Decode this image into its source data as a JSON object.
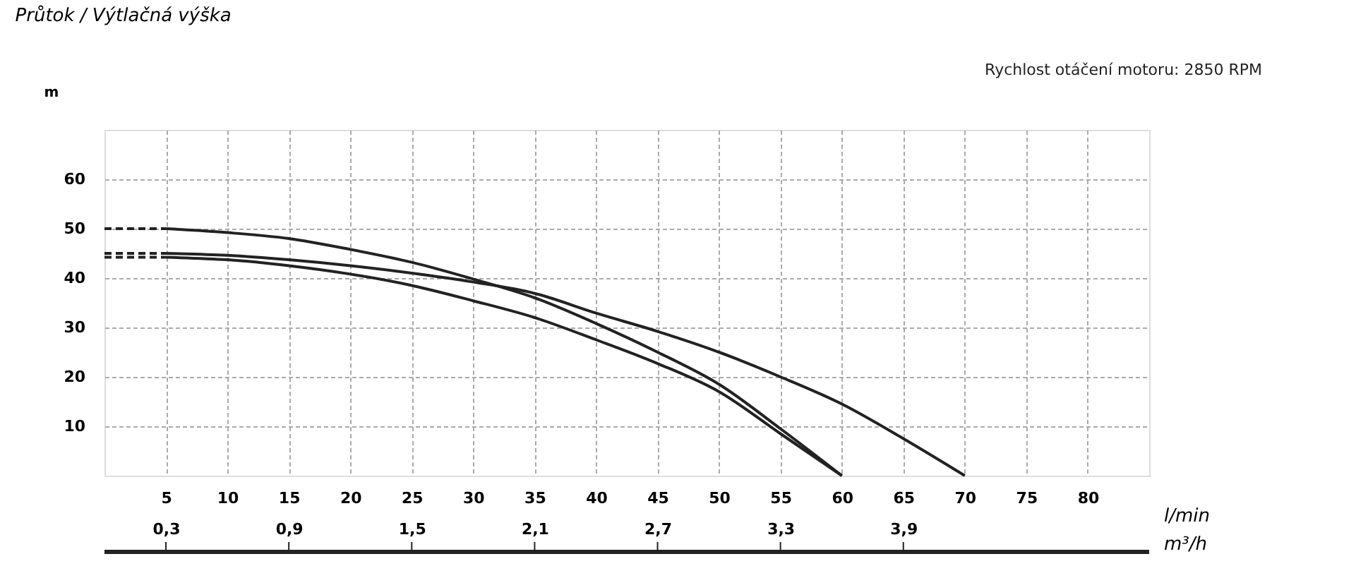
{
  "chart_data": {
    "type": "line",
    "title": "Průtok / Výtlačná výška",
    "xlabel": "l/min",
    "ylabel": "m",
    "x2label": "m³/h",
    "annotations": [
      "Rychlost otáčení motoru: 2850 RPM"
    ],
    "xlim": [
      0,
      85
    ],
    "xticks": [
      5,
      10,
      15,
      20,
      25,
      30,
      35,
      40,
      45,
      50,
      55,
      60,
      65,
      70,
      75,
      80
    ],
    "ylim": [
      0,
      70
    ],
    "yticks": [
      10,
      20,
      30,
      40,
      50,
      60
    ],
    "x2lim": [
      0,
      5.1
    ],
    "x2ticks": [
      {
        "value": 0.3,
        "label": "0,3"
      },
      {
        "value": 0.9,
        "label": "0,9"
      },
      {
        "value": 1.5,
        "label": "1,5"
      },
      {
        "value": 2.1,
        "label": "2,1"
      },
      {
        "value": 2.7,
        "label": "2,7"
      },
      {
        "value": 3.3,
        "label": "3,3"
      },
      {
        "value": 3.9,
        "label": "3,9"
      }
    ],
    "grid": true,
    "series": [
      {
        "color": "#222222",
        "line_style": "dashed",
        "x": [
          0,
          5
        ],
        "values": [
          50,
          50
        ]
      },
      {
        "color": "#222222",
        "line_style": "dashed",
        "x": [
          0,
          5
        ],
        "values": [
          45,
          45
        ]
      },
      {
        "color": "#222222",
        "line_style": "dashed",
        "x": [
          0,
          5
        ],
        "values": [
          44.2,
          44.2
        ]
      },
      {
        "color": "#222222",
        "line_style": "solid",
        "x": [
          5,
          10,
          15,
          20,
          25,
          30,
          35,
          40,
          45,
          50,
          55,
          60
        ],
        "values": [
          50,
          49.2,
          48,
          45.8,
          43.2,
          39.8,
          36,
          30.8,
          25,
          18.5,
          9.5,
          0
        ]
      },
      {
        "color": "#222222",
        "line_style": "solid",
        "x": [
          5,
          10,
          15,
          20,
          25,
          30,
          35,
          40,
          45,
          50,
          55,
          60,
          65,
          70
        ],
        "values": [
          45,
          44.6,
          43.7,
          42.5,
          41,
          39.2,
          36.9,
          32.9,
          29.2,
          25,
          20,
          14.5,
          7.5,
          0
        ]
      },
      {
        "color": "#222222",
        "line_style": "solid",
        "x": [
          5,
          10,
          15,
          20,
          25,
          30,
          35,
          40,
          45,
          50,
          55,
          60
        ],
        "values": [
          44.2,
          43.7,
          42.5,
          40.8,
          38.5,
          35.4,
          32,
          27.5,
          22.7,
          17,
          8.5,
          0
        ]
      }
    ]
  }
}
